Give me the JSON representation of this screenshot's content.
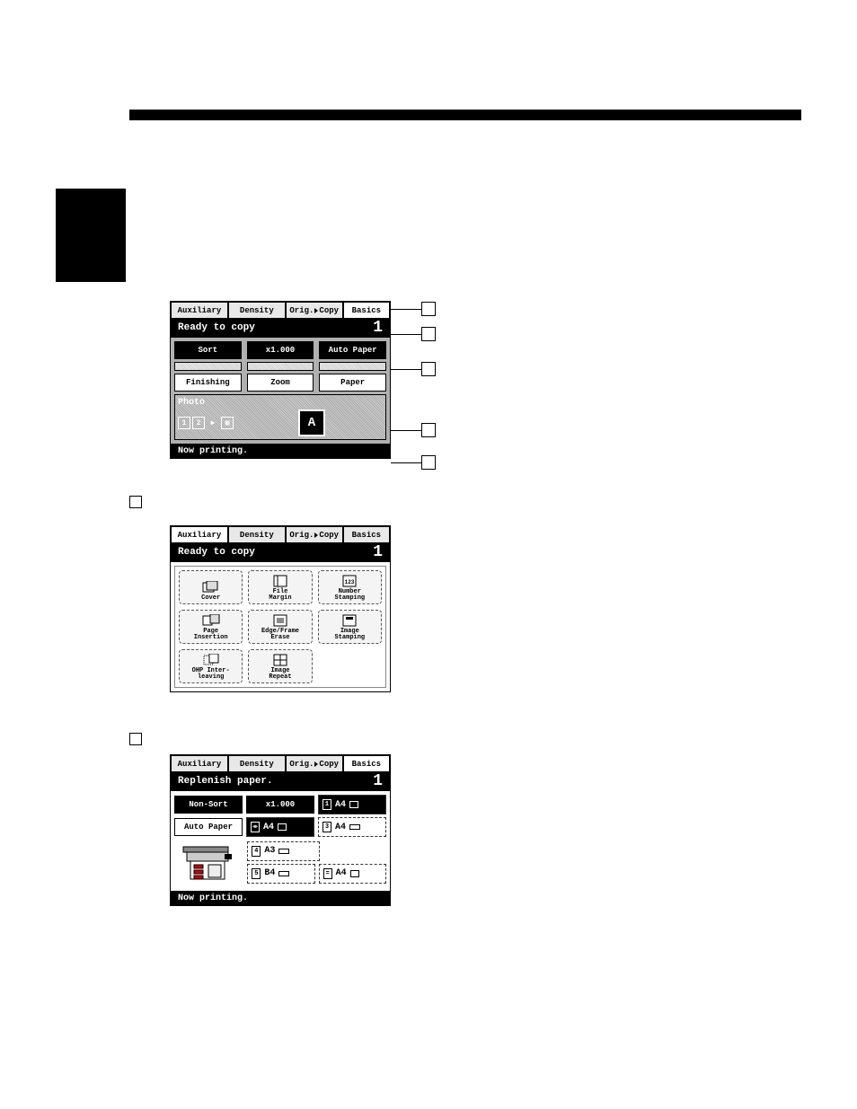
{
  "panel1": {
    "tabs": {
      "auxiliary": "Auxiliary",
      "density": "Density",
      "origCopy": {
        "left": "Orig.",
        "right": "Copy"
      },
      "basics": "Basics"
    },
    "status": {
      "text": "Ready to copy",
      "count": "1"
    },
    "row1": {
      "sort": "Sort",
      "zoom": "x1.000",
      "paper": "Auto Paper"
    },
    "row2": {
      "finishing": "Finishing",
      "zoom": "Zoom",
      "paper": "Paper"
    },
    "lower": {
      "photo": "Photo",
      "a": "A"
    },
    "footer": "Now printing."
  },
  "panel2": {
    "tabs": {
      "auxiliary": "Auxiliary",
      "density": "Density",
      "origCopy": {
        "left": "Orig.",
        "right": "Copy"
      },
      "basics": "Basics"
    },
    "status": {
      "text": "Ready to copy",
      "count": "1"
    },
    "cells": [
      {
        "label": "Cover"
      },
      {
        "label": "File\nMargin"
      },
      {
        "label": "Number\nStamping"
      },
      {
        "label": "Page\nInsertion"
      },
      {
        "label": "Edge/Frame\nErase"
      },
      {
        "label": "Image\nStamping"
      },
      {
        "label": "OHP Inter-\nleaving"
      },
      {
        "label": "Image\nRepeat"
      },
      {
        "empty": true
      }
    ]
  },
  "panel3": {
    "tabs": {
      "auxiliary": "Auxiliary",
      "density": "Density",
      "origCopy": {
        "left": "Orig.",
        "right": "Copy"
      },
      "basics": "Basics"
    },
    "status": {
      "text": "Replenish paper.",
      "count": "1"
    },
    "row1": {
      "nonsort": "Non-Sort",
      "zoom": "x1.000"
    },
    "autoPaper": "Auto Paper",
    "trays": [
      "A4",
      "A4",
      "A4",
      "A3",
      "B4",
      "A4"
    ],
    "trayMarkers": [
      "1",
      "2",
      "3",
      "4",
      "5",
      "="
    ],
    "footer": "Now printing."
  },
  "colors": {
    "black": "#000000",
    "white": "#ffffff",
    "grey": "#b0b0b0"
  }
}
